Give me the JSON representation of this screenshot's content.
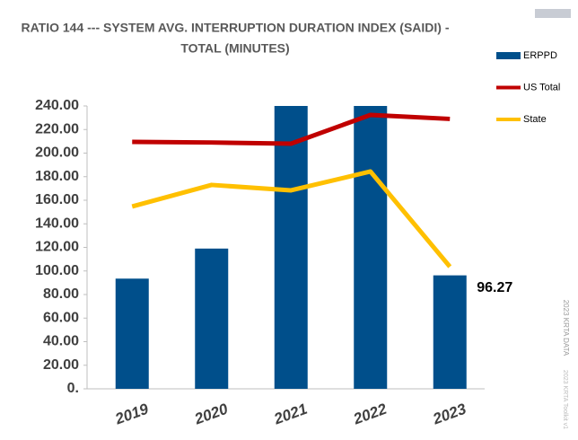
{
  "chart_data": {
    "type": "bar",
    "title": [
      "RATIO 144 --- SYSTEM AVG. INTERRUPTION DURATION INDEX (SAIDI) -",
      "TOTAL (MINUTES)"
    ],
    "categories": [
      "2019",
      "2020",
      "2021",
      "2022",
      "2023"
    ],
    "series": [
      {
        "name": "ERPPD",
        "type": "bar",
        "color": "#004f8b",
        "values": [
          93.5,
          119,
          240,
          240,
          96.27
        ]
      },
      {
        "name": "US Total",
        "type": "line",
        "color": "#c00000",
        "values": [
          209.5,
          209,
          208,
          232.4,
          229
        ]
      },
      {
        "name": "State",
        "type": "line",
        "color": "#ffc000",
        "values": [
          154.7,
          173,
          168.4,
          184.4,
          103.6
        ]
      }
    ],
    "data_labels": [
      {
        "series": 0,
        "index": 4
      }
    ],
    "ylim": [
      0,
      240
    ],
    "yticks": [
      {
        "value": 0,
        "label": "0."
      },
      {
        "value": 20,
        "label": "20.00"
      },
      {
        "value": 40,
        "label": "40.00"
      },
      {
        "value": 60,
        "label": "60.00"
      },
      {
        "value": 80,
        "label": "80.00"
      },
      {
        "value": 100,
        "label": "100.00"
      },
      {
        "value": 120,
        "label": "120.00"
      },
      {
        "value": 140,
        "label": "140.00"
      },
      {
        "value": 160,
        "label": "160.00"
      },
      {
        "value": 180,
        "label": "180.00"
      },
      {
        "value": 200,
        "label": "200.00"
      },
      {
        "value": 220,
        "label": "220.00"
      },
      {
        "value": 240,
        "label": "240.00"
      }
    ],
    "legend": "right",
    "annotations": [
      "2023 KRTA DATA",
      "2023 KRTA Toolkit v1"
    ]
  }
}
